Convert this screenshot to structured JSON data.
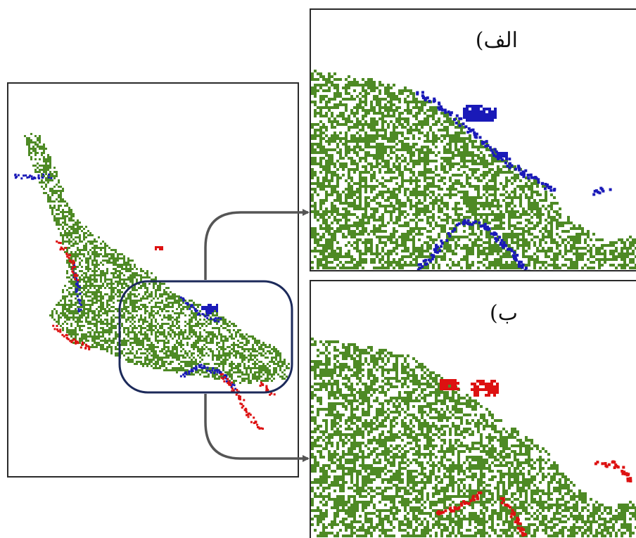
{
  "panels": {
    "a": {
      "label": "الف)"
    },
    "b": {
      "label": "ب)"
    }
  },
  "colors": {
    "vegetation": "#4e8a25",
    "blue_change": "#1a1ab8",
    "red_change": "#dd1111",
    "frame": "#2a2a2a",
    "zoom_box": "#1c2a5a",
    "arrow": "#555555"
  }
}
